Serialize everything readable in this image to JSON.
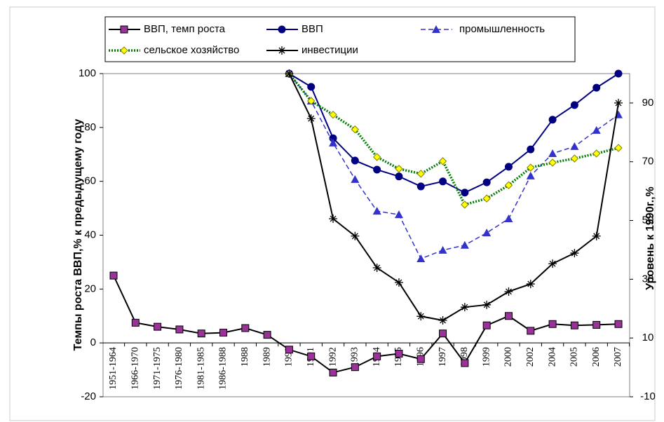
{
  "chart_data": {
    "type": "line",
    "y_label": "Темпы роста ВВП,%  к предыдущему  году",
    "y2_label": "Уровень к 1990г.,%",
    "categories": [
      "1951-1964",
      "1966-1970",
      "1971-1975",
      "1976-1980",
      "1981-1985",
      "1986-1988",
      "1988",
      "1989",
      "1990",
      "1991",
      "1992",
      "1993",
      "1994",
      "1995",
      "1996",
      "1997",
      "1998",
      "1999",
      "2000",
      "2002",
      "2004",
      "2005",
      "2006",
      "2007"
    ],
    "ylim": [
      -20,
      100
    ],
    "yticks": [
      -20,
      0,
      20,
      40,
      60,
      80,
      100
    ],
    "y2lim": [
      -10,
      100
    ],
    "y2ticks": [
      -10,
      10,
      30,
      50,
      70,
      90
    ],
    "series": [
      {
        "name": "ВВП, темп роста",
        "color": "#000000",
        "marker": "square",
        "marker_color": "#993399",
        "axis": "y",
        "values": [
          25,
          7.5,
          6,
          5,
          3.5,
          3.8,
          5.5,
          3,
          -2.5,
          -5,
          -11,
          -9,
          -5,
          -4,
          -6,
          3.5,
          -7.5,
          6.5,
          10,
          4.5,
          7,
          6.5,
          6.7,
          7
        ]
      },
      {
        "name": "ВВП",
        "color": "#000080",
        "marker": "circle",
        "marker_color": "#000080",
        "axis": "y2",
        "values": [
          null,
          null,
          null,
          null,
          null,
          null,
          null,
          null,
          100,
          95.5,
          78,
          70.4,
          67.3,
          65,
          61.6,
          63.3,
          59.5,
          63,
          68.3,
          74.2,
          84.3,
          89.3,
          95.2,
          100
        ]
      },
      {
        "name": "промышленность",
        "color": "#3333cc",
        "marker": "triangle",
        "marker_color": "#3333cc",
        "dash": "dashed",
        "axis": "y2",
        "values": [
          null,
          null,
          null,
          null,
          null,
          null,
          null,
          null,
          100,
          90.7,
          76.4,
          64,
          53.2,
          52,
          37,
          39.9,
          41.6,
          45.8,
          50.6,
          65.2,
          72.8,
          75.2,
          80.7,
          86
        ]
      },
      {
        "name": "сельское хозяйство",
        "color": "#008000",
        "marker": "diamond",
        "marker_color": "#ffff00",
        "dash": "dotted",
        "axis": "y2",
        "values": [
          null,
          null,
          null,
          null,
          null,
          null,
          null,
          null,
          100,
          90.7,
          86,
          81,
          71.6,
          67.6,
          65.9,
          70.2,
          55.4,
          57.5,
          62,
          68,
          69.7,
          71.1,
          72.8,
          74.7
        ]
      },
      {
        "name": "инвестиции",
        "color": "#000000",
        "marker": "star",
        "marker_color": "#000000",
        "axis": "y2",
        "values": [
          null,
          null,
          null,
          null,
          null,
          null,
          null,
          null,
          100,
          84.7,
          50.6,
          44.7,
          33.9,
          28.9,
          17.4,
          16,
          20.5,
          21.3,
          25.8,
          28.4,
          35.3,
          38.9,
          44.7,
          90
        ]
      }
    ]
  }
}
